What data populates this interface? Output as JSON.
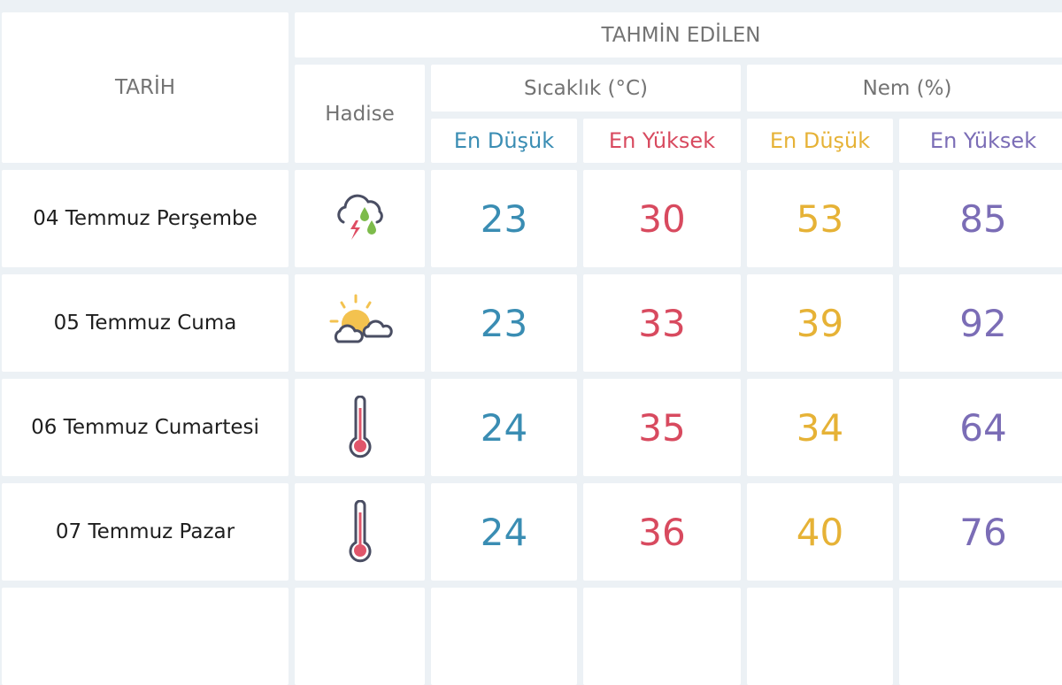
{
  "header": {
    "date_col": "TARİH",
    "forecast_group": "TAHMİN EDİLEN",
    "event_col": "Hadise",
    "temp_group": "Sıcaklık (°C)",
    "humidity_group": "Nem (%)",
    "min_label": "En Düşük",
    "max_label": "En Yüksek"
  },
  "colors": {
    "temp_min": "#3a8db3",
    "temp_max": "#d84a5f",
    "hum_min": "#e6b236",
    "hum_max": "#7b6db6"
  },
  "rows": [
    {
      "date": "04 Temmuz Perşembe",
      "icon": "thunderstorm-rain-icon",
      "temp_min": "23",
      "temp_max": "30",
      "hum_min": "53",
      "hum_max": "85"
    },
    {
      "date": "05 Temmuz Cuma",
      "icon": "partly-cloudy-icon",
      "temp_min": "23",
      "temp_max": "33",
      "hum_min": "39",
      "hum_max": "92"
    },
    {
      "date": "06 Temmuz Cumartesi",
      "icon": "thermometer-hot-icon",
      "temp_min": "24",
      "temp_max": "35",
      "hum_min": "34",
      "hum_max": "64"
    },
    {
      "date": "07 Temmuz Pazar",
      "icon": "thermometer-hot-icon",
      "temp_min": "24",
      "temp_max": "36",
      "hum_min": "40",
      "hum_max": "76"
    }
  ]
}
